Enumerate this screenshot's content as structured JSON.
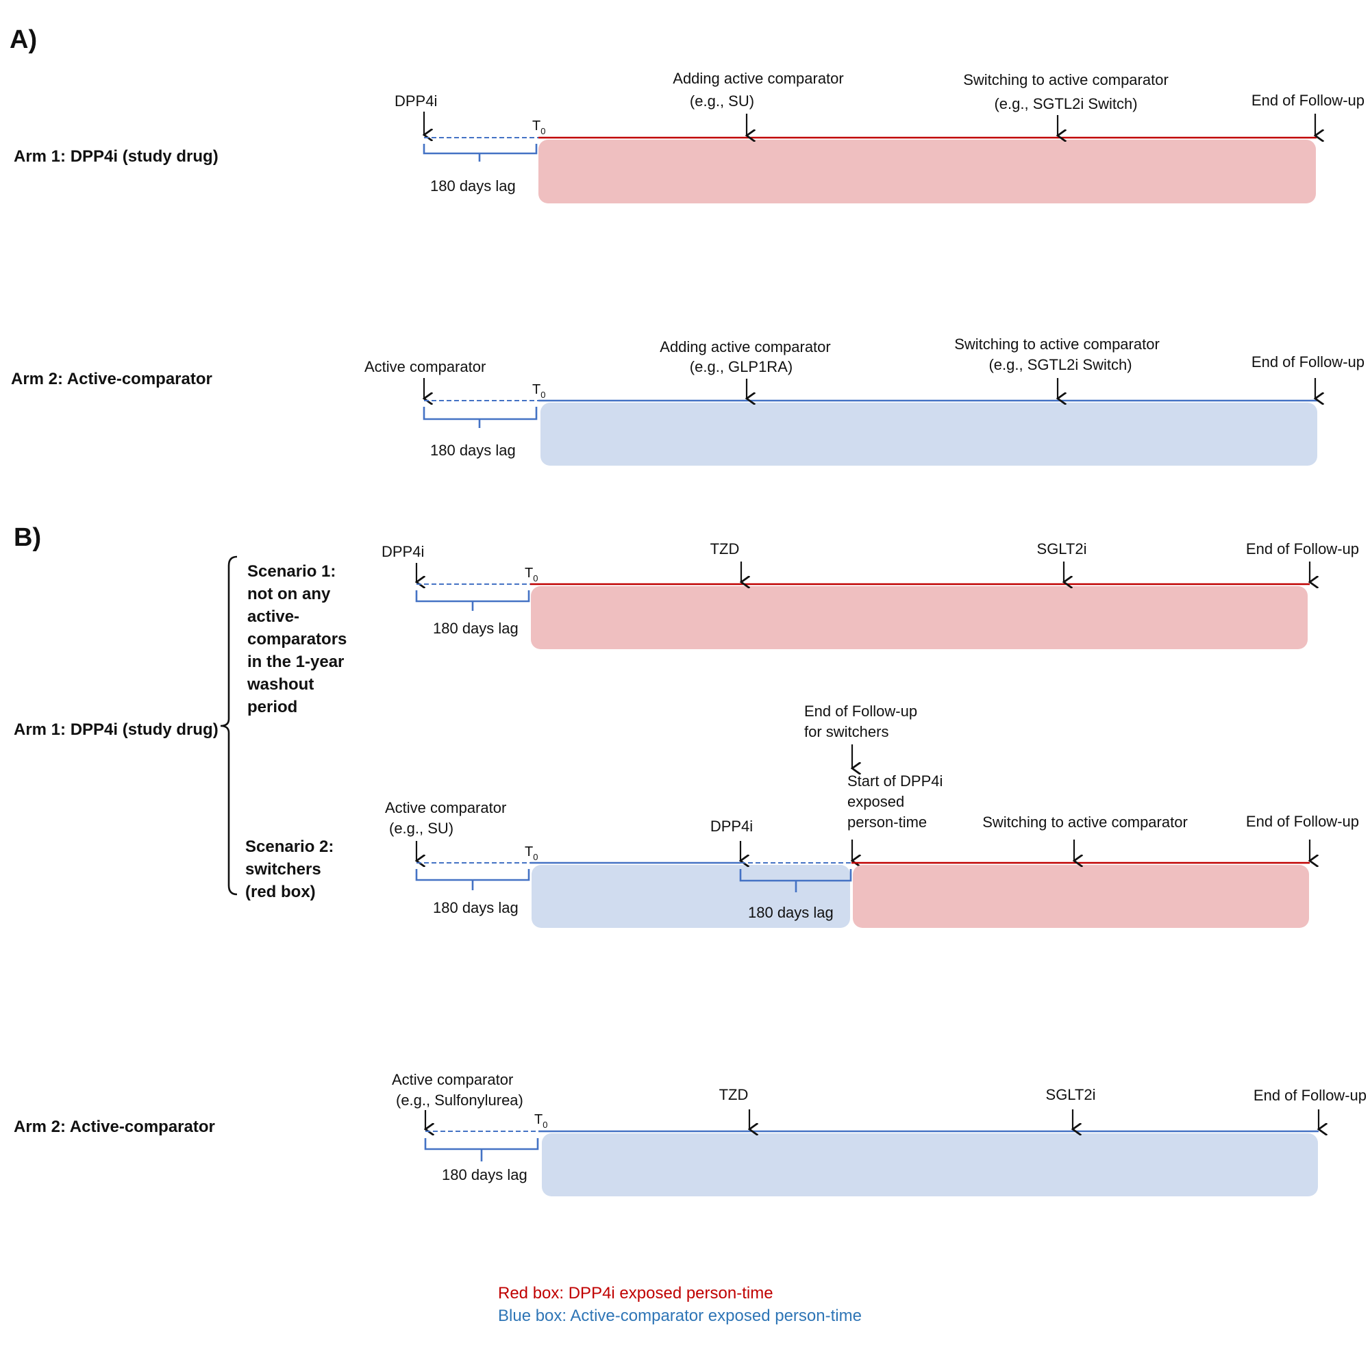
{
  "colors": {
    "red_line": "#c00000",
    "red_box": "#efbfc0",
    "blue_line": "#4472c4",
    "blue_box": "#d0dcef",
    "legend_red": "#c00000",
    "legend_blue": "#2e75b6"
  },
  "panel_a": {
    "label": "A)",
    "arm1": {
      "label": "Arm 1: DPP4i (study drug)",
      "start_label": "DPP4i",
      "t0": "T",
      "t0_sub": "0",
      "lag_label": "180 days lag",
      "event1_line1": "Adding active comparator",
      "event1_line2": "(e.g., SU)",
      "event2_line1": "Switching to active comparator",
      "event2_line2": "(e.g., SGTL2i Switch)",
      "end_label": "End of Follow-up"
    },
    "arm2": {
      "label": "Arm 2: Active-comparator",
      "start_label": "Active comparator",
      "t0": "T",
      "t0_sub": "0",
      "lag_label": "180 days lag",
      "event1_line1": "Adding active comparator",
      "event1_line2": "(e.g., GLP1RA)",
      "event2_line1": "Switching to active comparator",
      "event2_line2": "(e.g., SGTL2i Switch)",
      "end_label": "End of Follow-up"
    }
  },
  "panel_b": {
    "label": "B)",
    "arm1_label": "Arm 1: DPP4i (study drug)",
    "scenario1": {
      "title_lines": [
        "Scenario 1:",
        "not on any",
        "active-",
        "comparators",
        "in the 1-year",
        "washout",
        "period"
      ],
      "start_label": "DPP4i",
      "t0": "T",
      "t0_sub": "0",
      "lag_label": "180 days lag",
      "event1": "TZD",
      "event2": "SGLT2i",
      "end_label": "End of Follow-up"
    },
    "scenario2": {
      "title_lines": [
        "Scenario 2:",
        "switchers",
        "(red box)"
      ],
      "start_line1": "Active comparator",
      "start_line2": "(e.g., SU)",
      "t0": "T",
      "t0_sub": "0",
      "lag_label": "180 days lag",
      "dpp4i_label": "DPP4i",
      "lag2_label": "180 days lag",
      "end_switch_line1": "End of Follow-up",
      "end_switch_line2": "for switchers",
      "start_dpp4i_line1": "Start of DPP4i",
      "start_dpp4i_line2": "exposed",
      "start_dpp4i_line3": "person-time",
      "switch_label": "Switching to active comparator",
      "end_label": "End of Follow-up"
    },
    "arm2": {
      "label": "Arm 2: Active-comparator",
      "start_line1": "Active comparator",
      "start_line2": "(e.g., Sulfonylurea)",
      "t0": "T",
      "t0_sub": "0",
      "lag_label": "180 days lag",
      "event1": "TZD",
      "event2": "SGLT2i",
      "end_label": "End of Follow-up"
    }
  },
  "legend": {
    "red": "Red box: DPP4i exposed person-time",
    "blue": "Blue box: Active-comparator exposed person-time"
  }
}
